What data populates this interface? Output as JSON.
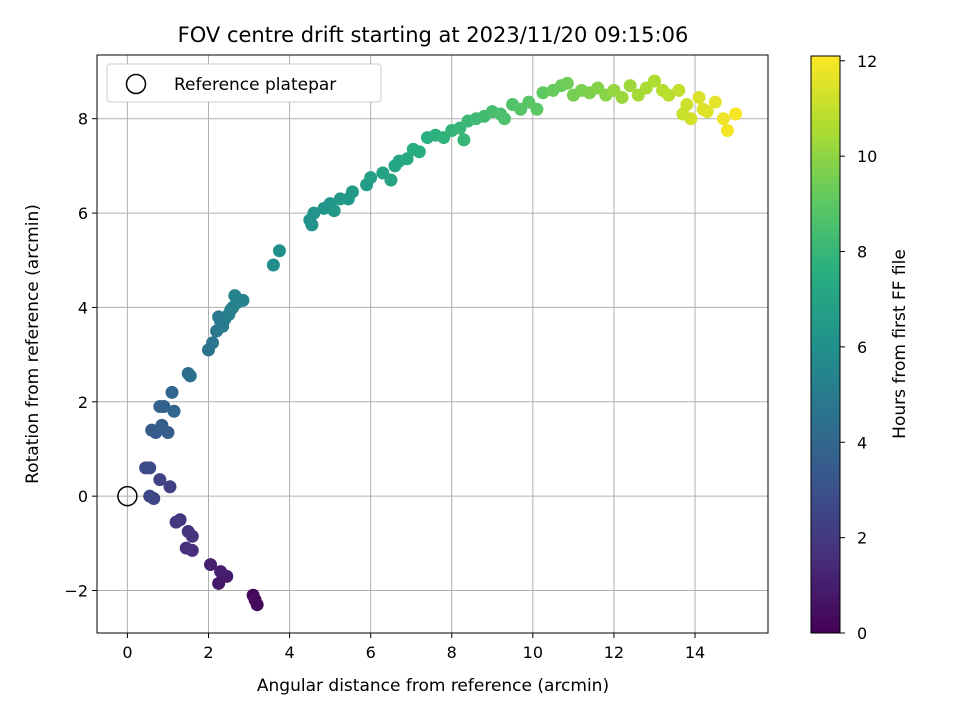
{
  "chart_data": {
    "type": "scatter",
    "title": "FOV centre drift starting at 2023/11/20 09:15:06",
    "xlabel": "Angular distance from reference (arcmin)",
    "ylabel": "Rotation from reference (arcmin)",
    "xlim": [
      -0.75,
      15.8
    ],
    "ylim": [
      -2.9,
      9.35
    ],
    "xticks": [
      0,
      2,
      4,
      6,
      8,
      10,
      12,
      14
    ],
    "yticks": [
      -2,
      0,
      2,
      4,
      6,
      8
    ],
    "grid": true,
    "legend": {
      "position": "top-left",
      "entries": [
        "Reference platepar"
      ]
    },
    "reference_point": {
      "x": 0,
      "y": 0,
      "label": "Reference platepar"
    },
    "colorbar": {
      "label": "Hours from first FF file",
      "min": 0,
      "max": 12.1,
      "ticks": [
        0,
        2,
        4,
        6,
        8,
        10,
        12
      ],
      "colormap": "viridis"
    },
    "points": [
      {
        "x": 3.1,
        "y": -2.1,
        "c": 0.2
      },
      {
        "x": 3.2,
        "y": -2.3,
        "c": 0.3
      },
      {
        "x": 3.15,
        "y": -2.2,
        "c": 0.3
      },
      {
        "x": 2.25,
        "y": -1.85,
        "c": 0.8
      },
      {
        "x": 2.45,
        "y": -1.7,
        "c": 0.9
      },
      {
        "x": 2.3,
        "y": -1.6,
        "c": 1.0
      },
      {
        "x": 2.05,
        "y": -1.45,
        "c": 1.1
      },
      {
        "x": 1.6,
        "y": -1.15,
        "c": 1.5
      },
      {
        "x": 1.45,
        "y": -1.1,
        "c": 1.6
      },
      {
        "x": 1.6,
        "y": -0.85,
        "c": 1.7
      },
      {
        "x": 1.5,
        "y": -0.75,
        "c": 1.8
      },
      {
        "x": 1.3,
        "y": -0.5,
        "c": 1.9
      },
      {
        "x": 1.2,
        "y": -0.55,
        "c": 2.0
      },
      {
        "x": 1.05,
        "y": 0.2,
        "c": 2.3
      },
      {
        "x": 0.8,
        "y": 0.35,
        "c": 2.4
      },
      {
        "x": 0.65,
        "y": -0.05,
        "c": 2.5
      },
      {
        "x": 0.55,
        "y": 0.0,
        "c": 2.6
      },
      {
        "x": 0.55,
        "y": 0.6,
        "c": 2.7
      },
      {
        "x": 0.45,
        "y": 0.6,
        "c": 2.8
      },
      {
        "x": 0.7,
        "y": 1.35,
        "c": 3.4
      },
      {
        "x": 0.6,
        "y": 1.4,
        "c": 3.5
      },
      {
        "x": 0.85,
        "y": 1.5,
        "c": 3.6
      },
      {
        "x": 1.0,
        "y": 1.35,
        "c": 3.6
      },
      {
        "x": 0.9,
        "y": 1.9,
        "c": 3.7
      },
      {
        "x": 0.8,
        "y": 1.9,
        "c": 3.8
      },
      {
        "x": 1.15,
        "y": 1.8,
        "c": 3.9
      },
      {
        "x": 1.1,
        "y": 2.2,
        "c": 4.0
      },
      {
        "x": 1.5,
        "y": 2.6,
        "c": 4.3
      },
      {
        "x": 1.55,
        "y": 2.55,
        "c": 4.4
      },
      {
        "x": 2.0,
        "y": 3.1,
        "c": 4.6
      },
      {
        "x": 2.1,
        "y": 3.25,
        "c": 4.7
      },
      {
        "x": 2.2,
        "y": 3.5,
        "c": 4.8
      },
      {
        "x": 2.3,
        "y": 3.7,
        "c": 4.9
      },
      {
        "x": 2.4,
        "y": 3.75,
        "c": 5.0
      },
      {
        "x": 2.35,
        "y": 3.6,
        "c": 5.0
      },
      {
        "x": 2.5,
        "y": 3.85,
        "c": 5.1
      },
      {
        "x": 2.6,
        "y": 4.0,
        "c": 5.2
      },
      {
        "x": 2.55,
        "y": 3.95,
        "c": 5.2
      },
      {
        "x": 2.7,
        "y": 4.1,
        "c": 5.3
      },
      {
        "x": 2.65,
        "y": 4.25,
        "c": 5.3
      },
      {
        "x": 2.85,
        "y": 4.15,
        "c": 5.4
      },
      {
        "x": 2.25,
        "y": 3.8,
        "c": 4.9
      },
      {
        "x": 3.6,
        "y": 4.9,
        "c": 5.8
      },
      {
        "x": 3.75,
        "y": 5.2,
        "c": 5.9
      },
      {
        "x": 4.5,
        "y": 5.85,
        "c": 6.1
      },
      {
        "x": 4.6,
        "y": 6.0,
        "c": 6.2
      },
      {
        "x": 4.55,
        "y": 5.75,
        "c": 6.2
      },
      {
        "x": 4.85,
        "y": 6.1,
        "c": 6.3
      },
      {
        "x": 5.0,
        "y": 6.2,
        "c": 6.3
      },
      {
        "x": 5.1,
        "y": 6.05,
        "c": 6.4
      },
      {
        "x": 5.25,
        "y": 6.3,
        "c": 6.4
      },
      {
        "x": 5.45,
        "y": 6.3,
        "c": 6.5
      },
      {
        "x": 5.55,
        "y": 6.45,
        "c": 6.5
      },
      {
        "x": 5.9,
        "y": 6.6,
        "c": 6.7
      },
      {
        "x": 6.0,
        "y": 6.75,
        "c": 6.8
      },
      {
        "x": 6.3,
        "y": 6.85,
        "c": 6.9
      },
      {
        "x": 6.5,
        "y": 6.7,
        "c": 7.0
      },
      {
        "x": 6.6,
        "y": 7.0,
        "c": 7.1
      },
      {
        "x": 6.7,
        "y": 7.1,
        "c": 7.2
      },
      {
        "x": 6.9,
        "y": 7.15,
        "c": 7.3
      },
      {
        "x": 7.05,
        "y": 7.35,
        "c": 7.4
      },
      {
        "x": 7.2,
        "y": 7.3,
        "c": 7.5
      },
      {
        "x": 7.4,
        "y": 7.6,
        "c": 7.6
      },
      {
        "x": 7.6,
        "y": 7.65,
        "c": 7.7
      },
      {
        "x": 7.8,
        "y": 7.6,
        "c": 7.8
      },
      {
        "x": 8.0,
        "y": 7.75,
        "c": 7.9
      },
      {
        "x": 8.2,
        "y": 7.8,
        "c": 8.0
      },
      {
        "x": 8.3,
        "y": 7.55,
        "c": 8.0
      },
      {
        "x": 8.4,
        "y": 7.95,
        "c": 8.1
      },
      {
        "x": 8.6,
        "y": 8.0,
        "c": 8.2
      },
      {
        "x": 8.8,
        "y": 8.05,
        "c": 8.3
      },
      {
        "x": 9.0,
        "y": 8.15,
        "c": 8.4
      },
      {
        "x": 9.2,
        "y": 8.1,
        "c": 8.5
      },
      {
        "x": 9.3,
        "y": 8.0,
        "c": 8.6
      },
      {
        "x": 9.5,
        "y": 8.3,
        "c": 8.7
      },
      {
        "x": 9.7,
        "y": 8.2,
        "c": 8.8
      },
      {
        "x": 9.9,
        "y": 8.35,
        "c": 8.9
      },
      {
        "x": 10.1,
        "y": 8.2,
        "c": 9.0
      },
      {
        "x": 10.25,
        "y": 8.55,
        "c": 9.1
      },
      {
        "x": 10.5,
        "y": 8.6,
        "c": 9.2
      },
      {
        "x": 10.7,
        "y": 8.7,
        "c": 9.3
      },
      {
        "x": 10.85,
        "y": 8.75,
        "c": 9.4
      },
      {
        "x": 11.0,
        "y": 8.5,
        "c": 9.5
      },
      {
        "x": 11.2,
        "y": 8.6,
        "c": 9.6
      },
      {
        "x": 11.4,
        "y": 8.55,
        "c": 9.7
      },
      {
        "x": 11.6,
        "y": 8.65,
        "c": 9.8
      },
      {
        "x": 11.8,
        "y": 8.5,
        "c": 9.9
      },
      {
        "x": 12.0,
        "y": 8.6,
        "c": 10.1
      },
      {
        "x": 12.2,
        "y": 8.45,
        "c": 10.2
      },
      {
        "x": 12.4,
        "y": 8.7,
        "c": 10.3
      },
      {
        "x": 12.6,
        "y": 8.5,
        "c": 10.4
      },
      {
        "x": 12.8,
        "y": 8.65,
        "c": 10.5
      },
      {
        "x": 13.0,
        "y": 8.8,
        "c": 10.6
      },
      {
        "x": 13.2,
        "y": 8.6,
        "c": 10.7
      },
      {
        "x": 13.35,
        "y": 8.5,
        "c": 10.8
      },
      {
        "x": 13.6,
        "y": 8.6,
        "c": 11.0
      },
      {
        "x": 13.8,
        "y": 8.3,
        "c": 11.2
      },
      {
        "x": 13.9,
        "y": 8.0,
        "c": 11.3
      },
      {
        "x": 14.1,
        "y": 8.45,
        "c": 11.4
      },
      {
        "x": 14.3,
        "y": 8.15,
        "c": 11.5
      },
      {
        "x": 14.5,
        "y": 8.35,
        "c": 11.6
      },
      {
        "x": 14.7,
        "y": 8.0,
        "c": 11.8
      },
      {
        "x": 14.8,
        "y": 7.75,
        "c": 11.9
      },
      {
        "x": 15.0,
        "y": 8.1,
        "c": 12.0
      },
      {
        "x": 14.2,
        "y": 8.2,
        "c": 11.5
      },
      {
        "x": 13.7,
        "y": 8.1,
        "c": 11.1
      }
    ]
  }
}
